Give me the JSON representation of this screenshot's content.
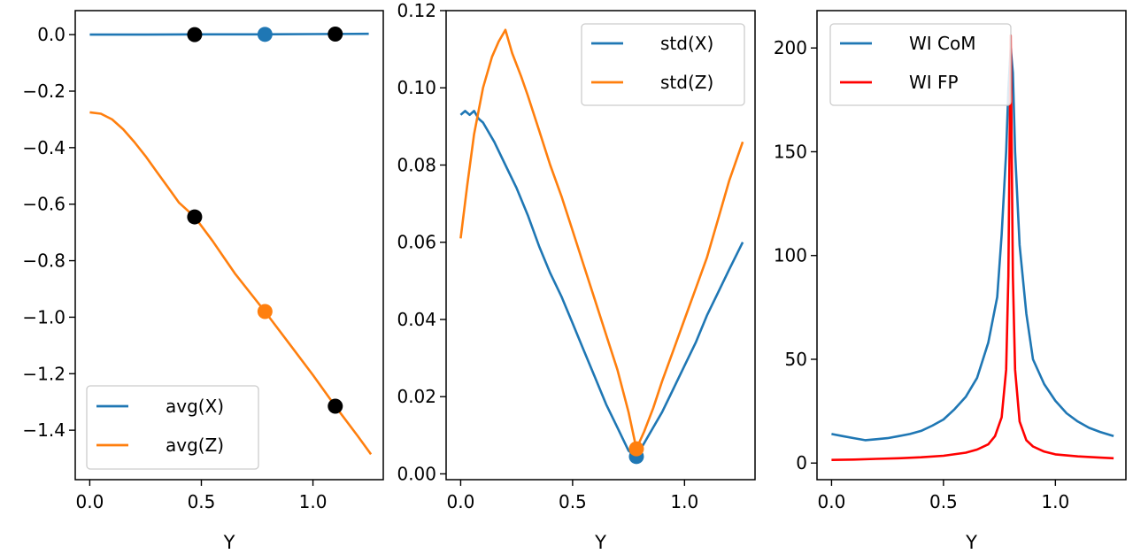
{
  "chart_data": [
    {
      "type": "line",
      "xlabel": "Y",
      "ylabel": "",
      "xlim": [
        -0.065,
        1.315
      ],
      "ylim": [
        -1.575,
        0.085
      ],
      "xticks": [
        0.0,
        0.5,
        1.0
      ],
      "yticks": [
        0.0,
        -0.2,
        -0.4,
        -0.6,
        -0.8,
        -1.0,
        -1.2,
        -1.4
      ],
      "legend_position": "lower-left",
      "series": [
        {
          "name": "avg(X)",
          "color": "#1f77b4",
          "x": [
            0.0,
            0.25,
            0.5,
            0.75,
            1.0,
            1.25
          ],
          "y": [
            0.0,
            0.0,
            0.001,
            0.001,
            0.002,
            0.003
          ]
        },
        {
          "name": "avg(Z)",
          "color": "#ff7f0e",
          "x": [
            0.0,
            0.05,
            0.1,
            0.15,
            0.2,
            0.25,
            0.3,
            0.35,
            0.4,
            0.47,
            0.55,
            0.65,
            0.785,
            0.9,
            1.0,
            1.1,
            1.2,
            1.26
          ],
          "y": [
            -0.275,
            -0.28,
            -0.3,
            -0.335,
            -0.38,
            -0.43,
            -0.485,
            -0.54,
            -0.595,
            -0.645,
            -0.73,
            -0.845,
            -0.98,
            -1.1,
            -1.205,
            -1.315,
            -1.42,
            -1.485
          ]
        }
      ],
      "markers": [
        {
          "x": 0.47,
          "y": 0.0,
          "color": "#000000"
        },
        {
          "x": 0.785,
          "y": 0.001,
          "color": "#1f77b4"
        },
        {
          "x": 1.1,
          "y": 0.002,
          "color": "#000000"
        },
        {
          "x": 0.47,
          "y": -0.645,
          "color": "#000000"
        },
        {
          "x": 0.785,
          "y": -0.98,
          "color": "#ff7f0e"
        },
        {
          "x": 1.1,
          "y": -1.315,
          "color": "#000000"
        }
      ]
    },
    {
      "type": "line",
      "xlabel": "Y",
      "ylabel": "",
      "xlim": [
        -0.065,
        1.315
      ],
      "ylim": [
        -0.0015,
        0.12
      ],
      "xticks": [
        0.0,
        0.5,
        1.0
      ],
      "yticks": [
        0.0,
        0.02,
        0.04,
        0.06,
        0.08,
        0.1,
        0.12
      ],
      "legend_position": "upper-right",
      "series": [
        {
          "name": "std(X)",
          "color": "#1f77b4",
          "x": [
            0.0,
            0.02,
            0.04,
            0.06,
            0.08,
            0.1,
            0.15,
            0.2,
            0.25,
            0.3,
            0.35,
            0.4,
            0.45,
            0.5,
            0.55,
            0.6,
            0.65,
            0.7,
            0.75,
            0.785,
            0.82,
            0.86,
            0.9,
            0.95,
            1.0,
            1.05,
            1.1,
            1.15,
            1.2,
            1.26
          ],
          "y": [
            0.093,
            0.094,
            0.093,
            0.094,
            0.092,
            0.091,
            0.086,
            0.08,
            0.074,
            0.067,
            0.059,
            0.052,
            0.046,
            0.039,
            0.032,
            0.025,
            0.018,
            0.012,
            0.006,
            0.0045,
            0.008,
            0.012,
            0.016,
            0.022,
            0.028,
            0.034,
            0.041,
            0.047,
            0.053,
            0.06
          ]
        },
        {
          "name": "std(Z)",
          "color": "#ff7f0e",
          "x": [
            0.0,
            0.03,
            0.06,
            0.1,
            0.14,
            0.17,
            0.2,
            0.23,
            0.27,
            0.3,
            0.35,
            0.4,
            0.45,
            0.5,
            0.55,
            0.6,
            0.65,
            0.7,
            0.75,
            0.785,
            0.82,
            0.86,
            0.9,
            0.95,
            1.0,
            1.05,
            1.1,
            1.15,
            1.2,
            1.26
          ],
          "y": [
            0.061,
            0.075,
            0.088,
            0.1,
            0.108,
            0.112,
            0.115,
            0.109,
            0.103,
            0.098,
            0.089,
            0.08,
            0.072,
            0.063,
            0.054,
            0.045,
            0.036,
            0.027,
            0.016,
            0.0065,
            0.011,
            0.017,
            0.024,
            0.032,
            0.04,
            0.048,
            0.056,
            0.066,
            0.076,
            0.086
          ]
        }
      ],
      "markers": [
        {
          "x": 0.785,
          "y": 0.0045,
          "color": "#1f77b4"
        },
        {
          "x": 0.785,
          "y": 0.0065,
          "color": "#ff7f0e"
        }
      ]
    },
    {
      "type": "line",
      "xlabel": "Y",
      "ylabel": "",
      "xlim": [
        -0.065,
        1.315
      ],
      "ylim": [
        -8,
        218
      ],
      "xticks": [
        0.0,
        0.5,
        1.0
      ],
      "yticks": [
        0,
        50,
        100,
        150,
        200
      ],
      "legend_position": "upper-left",
      "series": [
        {
          "name": "WI CoM",
          "color": "#1f77b4",
          "x": [
            0.0,
            0.05,
            0.1,
            0.15,
            0.2,
            0.25,
            0.3,
            0.35,
            0.4,
            0.45,
            0.5,
            0.55,
            0.6,
            0.65,
            0.7,
            0.74,
            0.76,
            0.78,
            0.79,
            0.8,
            0.81,
            0.82,
            0.84,
            0.87,
            0.9,
            0.95,
            1.0,
            1.05,
            1.1,
            1.15,
            1.2,
            1.26
          ],
          "y": [
            14,
            13,
            12,
            11,
            11.5,
            12,
            13,
            14,
            15.5,
            18,
            21,
            26,
            32,
            41,
            58,
            80,
            110,
            150,
            180,
            200,
            188,
            150,
            105,
            72,
            50,
            38,
            30,
            24,
            20,
            17,
            15,
            13
          ]
        },
        {
          "name": "WI FP",
          "color": "#ff0000",
          "x": [
            0.0,
            0.1,
            0.2,
            0.3,
            0.4,
            0.5,
            0.6,
            0.65,
            0.7,
            0.73,
            0.76,
            0.78,
            0.79,
            0.795,
            0.8,
            0.805,
            0.81,
            0.82,
            0.84,
            0.87,
            0.9,
            0.95,
            1.0,
            1.1,
            1.2,
            1.26
          ],
          "y": [
            1.5,
            1.7,
            2.0,
            2.3,
            2.8,
            3.5,
            5,
            6.5,
            9,
            13,
            22,
            45,
            90,
            150,
            206,
            150,
            90,
            45,
            20,
            11,
            8,
            5.5,
            4.2,
            3.2,
            2.6,
            2.3
          ]
        }
      ],
      "markers": []
    }
  ]
}
